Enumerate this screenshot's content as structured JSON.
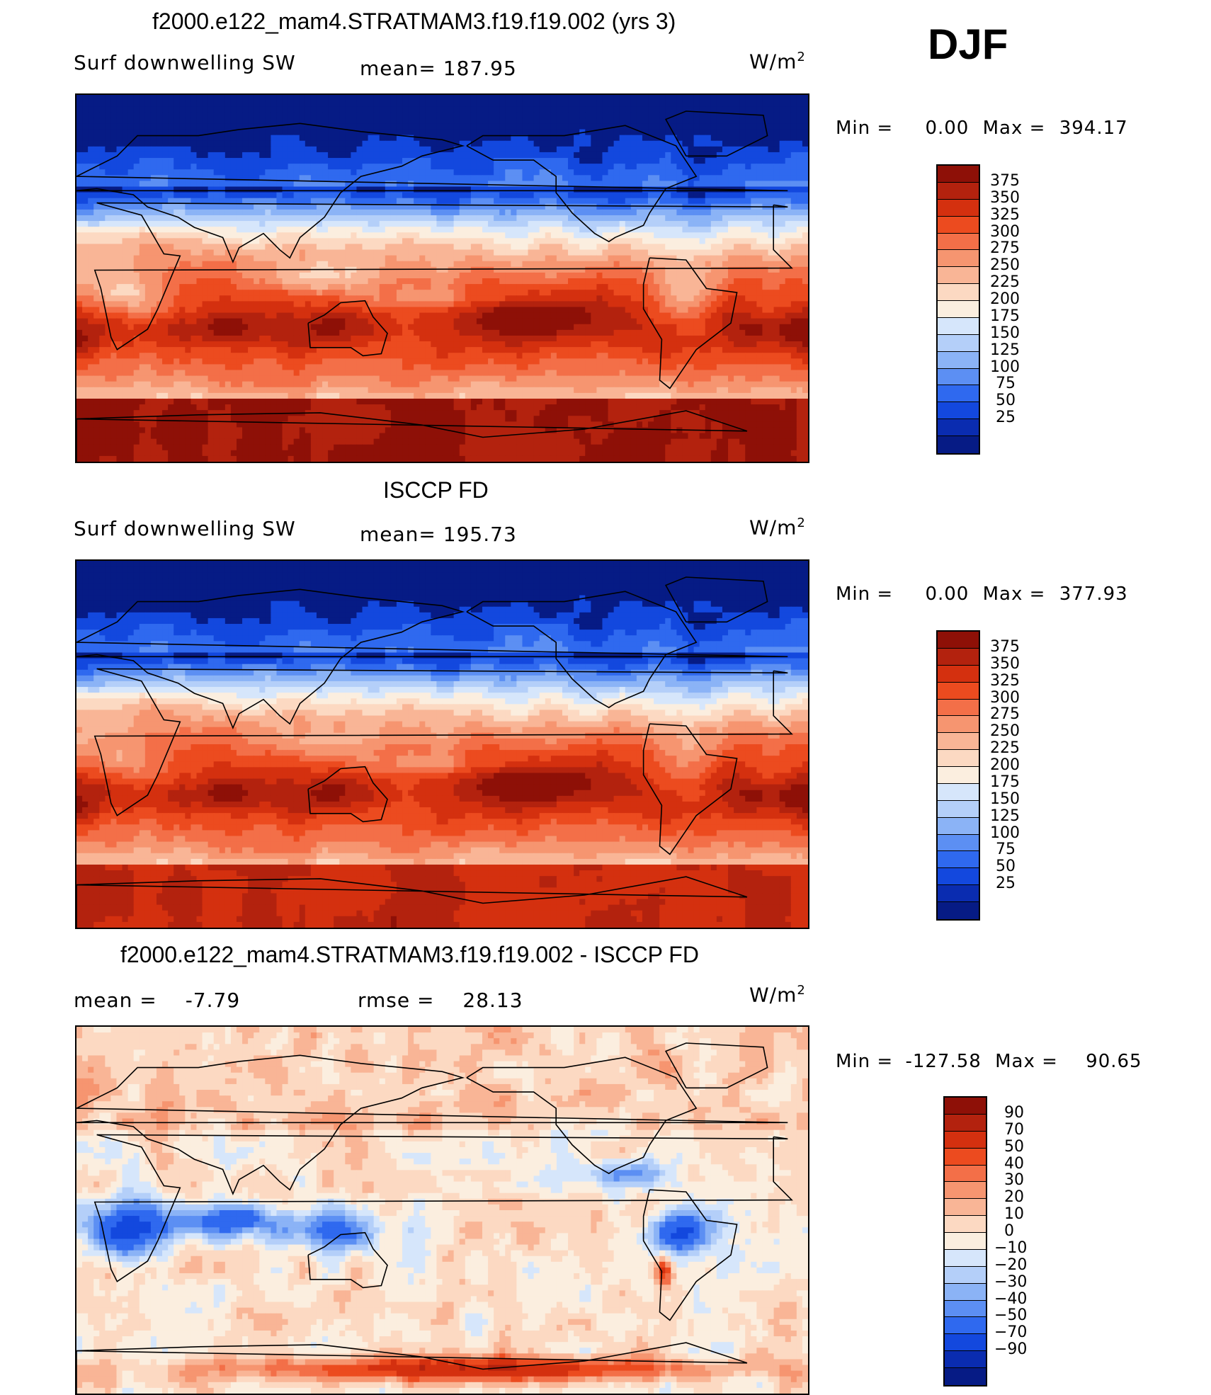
{
  "season": "DJF",
  "palette": {
    "pos16": [
      "#fbe6d6",
      "#fcd2b7",
      "#f9b596",
      "#f69570",
      "#f36f48",
      "#ef4e22",
      "#e23717",
      "#c42a12",
      "#8e1007"
    ],
    "neg16": [
      "#dbe9fb",
      "#bfd6fb",
      "#9cbff8",
      "#7aa6f7",
      "#588ff7",
      "#336ef3",
      "#1a50e6",
      "#0f35b6",
      "#081b85"
    ],
    "land_line": "#000000"
  },
  "chart_data": [
    {
      "type": "heatmap",
      "title": "f2000.e122_mam4.STRATMAM3.f19.f19.002 (yrs 3)",
      "left_label": "Surf  downwelling  SW",
      "stat_label": "mean=",
      "stat_value": "187.95",
      "units": "W/m",
      "units_sup": "2",
      "min_label": "Min  =",
      "min_value": "0.00",
      "max_label": "Max  =",
      "max_value": "394.17",
      "levels": [
        "375",
        "350",
        "325",
        "300",
        "275",
        "250",
        "225",
        "200",
        "175",
        "150",
        "125",
        "100",
        "75",
        "50",
        "25"
      ],
      "colors": [
        "#8e1007",
        "#b3220e",
        "#d4300f",
        "#ec4b1f",
        "#f36f48",
        "#f69570",
        "#f9b596",
        "#fcd9c2",
        "#fbeedf",
        "#d6e6fb",
        "#b4cff9",
        "#8bb3f6",
        "#5c8ff3",
        "#2f69ef",
        "#1348de",
        "#0a2cb0",
        "#061b85"
      ],
      "pattern": "model"
    },
    {
      "type": "heatmap",
      "title": "ISCCP FD",
      "left_label": "Surf  downwelling  SW",
      "stat_label": "mean=",
      "stat_value": "195.73",
      "units": "W/m",
      "units_sup": "2",
      "min_label": "Min  =",
      "min_value": "0.00",
      "max_label": "Max  =",
      "max_value": "377.93",
      "levels": [
        "375",
        "350",
        "325",
        "300",
        "275",
        "250",
        "225",
        "200",
        "175",
        "150",
        "125",
        "100",
        "75",
        "50",
        "25"
      ],
      "colors": [
        "#8e1007",
        "#b3220e",
        "#d4300f",
        "#ec4b1f",
        "#f36f48",
        "#f69570",
        "#f9b596",
        "#fcd9c2",
        "#fbeedf",
        "#d6e6fb",
        "#b4cff9",
        "#8bb3f6",
        "#5c8ff3",
        "#2f69ef",
        "#1348de",
        "#0a2cb0",
        "#061b85"
      ],
      "pattern": "obs"
    },
    {
      "type": "heatmap",
      "title": "f2000.e122_mam4.STRATMAM3.f19.f19.002 - ISCCP FD",
      "left_label": "mean  =",
      "left_value": "-7.79",
      "stat_label": "rmse  =",
      "stat_value": "28.13",
      "units": "W/m",
      "units_sup": "2",
      "min_label": "Min  =",
      "min_value": "-127.58",
      "max_label": "Max  =",
      "max_value": "90.65",
      "levels": [
        "90",
        "70",
        "50",
        "40",
        "30",
        "20",
        "10",
        "0",
        "-10",
        "-20",
        "-30",
        "-40",
        "-50",
        "-70",
        "-90"
      ],
      "colors": [
        "#8e1007",
        "#b3220e",
        "#d4300f",
        "#ec4b1f",
        "#f36f48",
        "#f69570",
        "#f9b596",
        "#fcd9c2",
        "#fbeedf",
        "#d6e6fb",
        "#b4cff9",
        "#8bb3f6",
        "#5c8ff3",
        "#2f69ef",
        "#1348de",
        "#0a2cb0",
        "#061b85"
      ],
      "pattern": "diff"
    }
  ]
}
